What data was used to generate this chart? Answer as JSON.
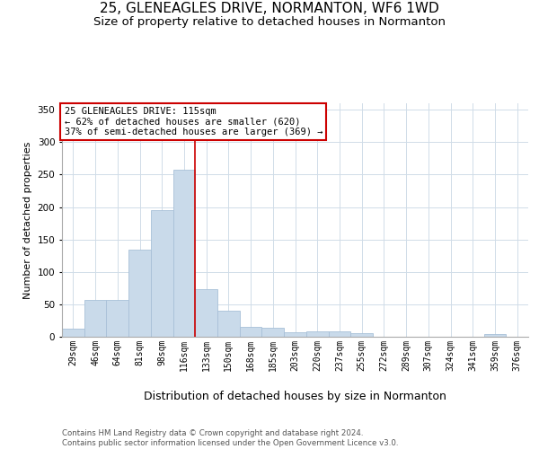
{
  "title1": "25, GLENEAGLES DRIVE, NORMANTON, WF6 1WD",
  "title2": "Size of property relative to detached houses in Normanton",
  "xlabel": "Distribution of detached houses by size in Normanton",
  "ylabel": "Number of detached properties",
  "categories": [
    "29sqm",
    "46sqm",
    "64sqm",
    "81sqm",
    "98sqm",
    "116sqm",
    "133sqm",
    "150sqm",
    "168sqm",
    "185sqm",
    "203sqm",
    "220sqm",
    "237sqm",
    "255sqm",
    "272sqm",
    "289sqm",
    "307sqm",
    "324sqm",
    "341sqm",
    "359sqm",
    "376sqm"
  ],
  "values": [
    13,
    57,
    57,
    135,
    195,
    258,
    73,
    40,
    15,
    14,
    7,
    8,
    8,
    5,
    0,
    0,
    0,
    0,
    0,
    4,
    0
  ],
  "bar_color": "#c9daea",
  "bar_edge_color": "#a8c0d8",
  "highlight_index": 5,
  "highlight_line_color": "#cc0000",
  "annotation_text": "25 GLENEAGLES DRIVE: 115sqm\n← 62% of detached houses are smaller (620)\n37% of semi-detached houses are larger (369) →",
  "annotation_box_color": "#ffffff",
  "annotation_box_edge_color": "#cc0000",
  "ylim": [
    0,
    360
  ],
  "yticks": [
    0,
    50,
    100,
    150,
    200,
    250,
    300,
    350
  ],
  "footer_text": "Contains HM Land Registry data © Crown copyright and database right 2024.\nContains public sector information licensed under the Open Government Licence v3.0.",
  "bg_color": "#ffffff",
  "grid_color": "#d0dce8",
  "title1_fontsize": 11,
  "title2_fontsize": 9.5,
  "xlabel_fontsize": 9,
  "ylabel_fontsize": 8,
  "tick_fontsize": 7,
  "footer_fontsize": 6.2,
  "annotation_fontsize": 7.5
}
